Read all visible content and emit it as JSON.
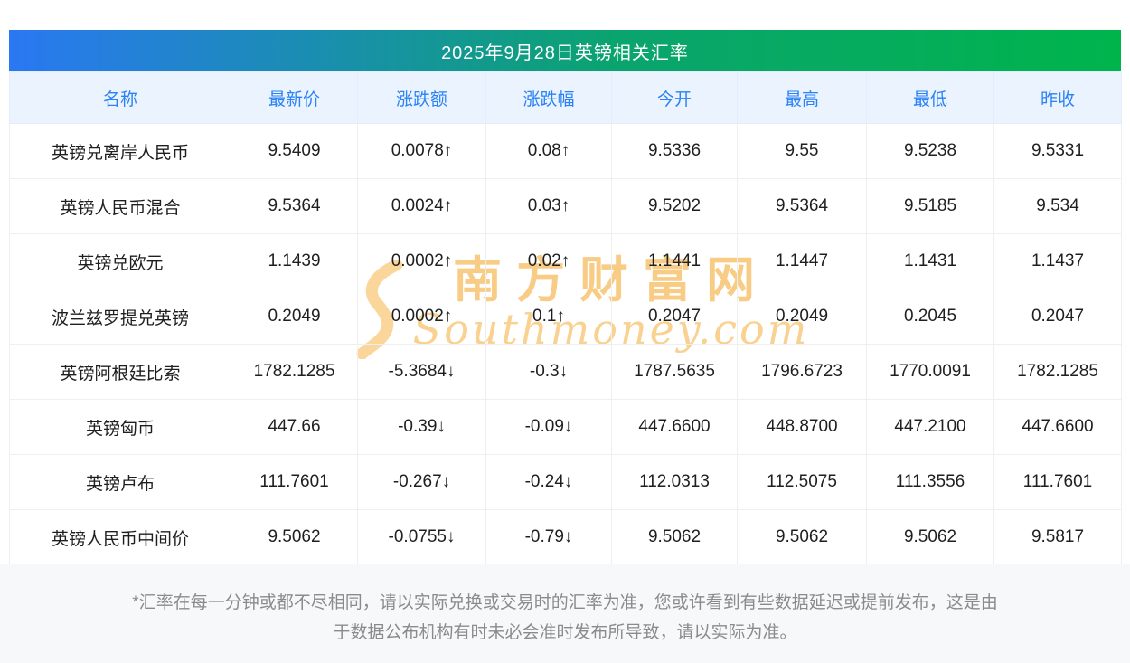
{
  "chart_data": {
    "type": "table",
    "title": "2025年9月28日英镑相关汇率",
    "columns": [
      "名称",
      "最新价",
      "涨跌额",
      "涨跌幅",
      "今开",
      "最高",
      "最低",
      "昨收"
    ],
    "rows": [
      {
        "name": "英镑兑离岸人民币",
        "values": [
          "9.5409",
          "0.0078↑",
          "0.08↑",
          "9.5336",
          "9.55",
          "9.5238",
          "9.5331"
        ],
        "trend": "up"
      },
      {
        "name": "英镑人民币混合",
        "values": [
          "9.5364",
          "0.0024↑",
          "0.03↑",
          "9.5202",
          "9.5364",
          "9.5185",
          "9.534"
        ],
        "trend": "up"
      },
      {
        "name": "英镑兑欧元",
        "values": [
          "1.1439",
          "0.0002↑",
          "0.02↑",
          "1.1441",
          "1.1447",
          "1.1431",
          "1.1437"
        ],
        "trend": "up"
      },
      {
        "name": "波兰兹罗提兑英镑",
        "values": [
          "0.2049",
          "0.0002↑",
          "0.1↑",
          "0.2047",
          "0.2049",
          "0.2045",
          "0.2047"
        ],
        "trend": "up"
      },
      {
        "name": "英镑阿根廷比索",
        "values": [
          "1782.1285",
          "-5.3684↓",
          "-0.3↓",
          "1787.5635",
          "1796.6723",
          "1770.0091",
          "1782.1285"
        ],
        "trend": "down"
      },
      {
        "name": "英镑匈币",
        "values": [
          "447.66",
          "-0.39↓",
          "-0.09↓",
          "447.6600",
          "448.8700",
          "447.2100",
          "447.6600"
        ],
        "trend": "down"
      },
      {
        "name": "英镑卢布",
        "values": [
          "111.7601",
          "-0.267↓",
          "-0.24↓",
          "112.0313",
          "112.5075",
          "111.3556",
          "111.7601"
        ],
        "trend": "down"
      },
      {
        "name": "英镑人民币中间价",
        "values": [
          "9.5062",
          "-0.0755↓",
          "-0.79↓",
          "9.5062",
          "9.5062",
          "9.5062",
          "9.5817"
        ],
        "trend": "down"
      }
    ]
  },
  "watermark": {
    "line1": "南方财富网",
    "line2": "Southmoney.com"
  },
  "footer": {
    "line1": "*汇率在每一分钟或都不尽相同，请以实际兑换或交易时的汇率为准，您或许看到有些数据延迟或提前发布，这是由",
    "line2": "于数据公布机构有时未必会准时发布所导致，请以实际为准。"
  },
  "colors": {
    "up": "#e63232",
    "down": "#17a143",
    "header_text": "#2b82f6",
    "gradient_left": "#2a78f2",
    "gradient_right": "#00b44c"
  }
}
